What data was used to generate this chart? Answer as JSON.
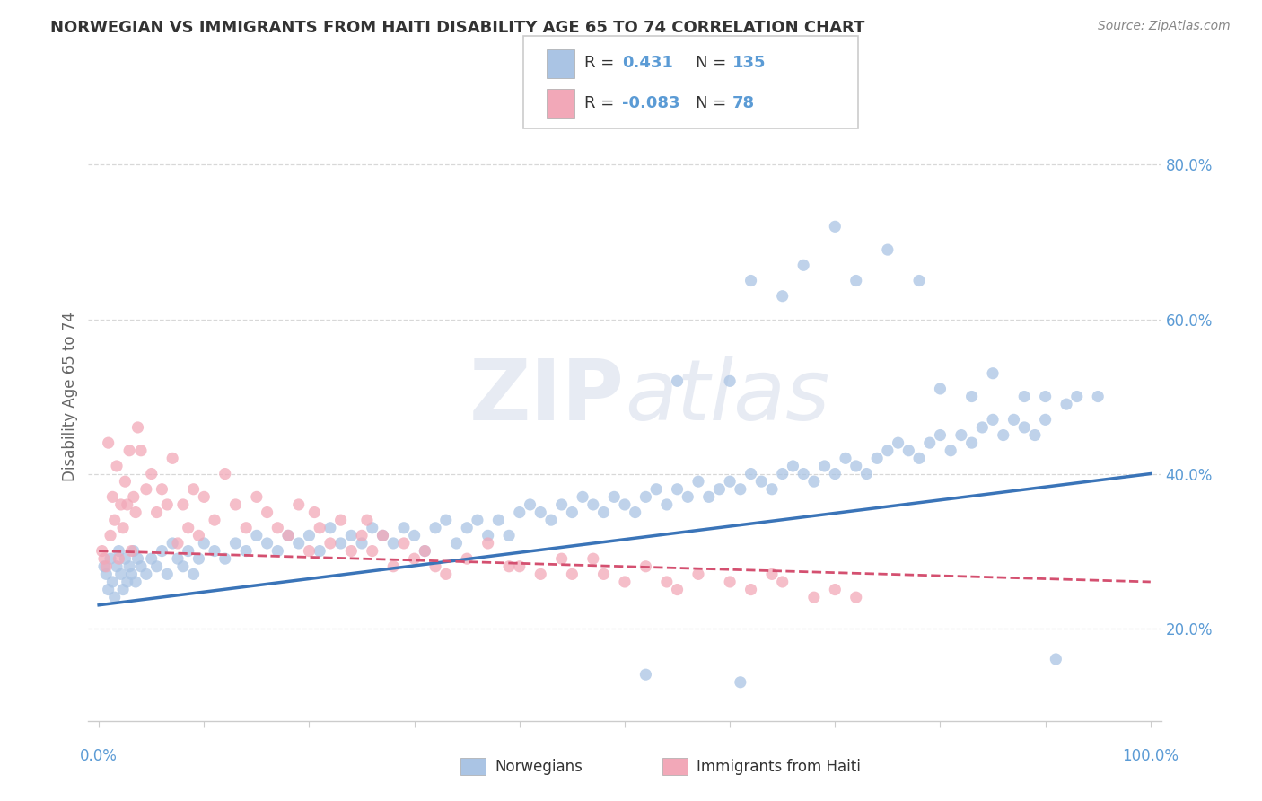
{
  "title": "NORWEGIAN VS IMMIGRANTS FROM HAITI DISABILITY AGE 65 TO 74 CORRELATION CHART",
  "source": "Source: ZipAtlas.com",
  "ylabel": "Disability Age 65 to 74",
  "xlim": [
    -1,
    101
  ],
  "ylim": [
    8,
    92
  ],
  "yticks": [
    20,
    40,
    60,
    80
  ],
  "ytick_labels": [
    "20.0%",
    "40.0%",
    "60.0%",
    "80.0%"
  ],
  "blue_R": "0.431",
  "blue_N": "135",
  "pink_R": "-0.083",
  "pink_N": "78",
  "blue_color": "#aac4e4",
  "pink_color": "#f2a8b8",
  "blue_line_color": "#3a74b8",
  "pink_line_color": "#d45070",
  "blue_scatter": [
    [
      0.5,
      28
    ],
    [
      0.7,
      27
    ],
    [
      0.9,
      25
    ],
    [
      1.1,
      29
    ],
    [
      1.3,
      26
    ],
    [
      1.5,
      24
    ],
    [
      1.7,
      28
    ],
    [
      1.9,
      30
    ],
    [
      2.1,
      27
    ],
    [
      2.3,
      25
    ],
    [
      2.5,
      29
    ],
    [
      2.7,
      26
    ],
    [
      2.9,
      28
    ],
    [
      3.1,
      27
    ],
    [
      3.3,
      30
    ],
    [
      3.5,
      26
    ],
    [
      3.7,
      29
    ],
    [
      4.0,
      28
    ],
    [
      4.5,
      27
    ],
    [
      5.0,
      29
    ],
    [
      5.5,
      28
    ],
    [
      6.0,
      30
    ],
    [
      6.5,
      27
    ],
    [
      7.0,
      31
    ],
    [
      7.5,
      29
    ],
    [
      8.0,
      28
    ],
    [
      8.5,
      30
    ],
    [
      9.0,
      27
    ],
    [
      9.5,
      29
    ],
    [
      10.0,
      31
    ],
    [
      11.0,
      30
    ],
    [
      12.0,
      29
    ],
    [
      13.0,
      31
    ],
    [
      14.0,
      30
    ],
    [
      15.0,
      32
    ],
    [
      16.0,
      31
    ],
    [
      17.0,
      30
    ],
    [
      18.0,
      32
    ],
    [
      19.0,
      31
    ],
    [
      20.0,
      32
    ],
    [
      21.0,
      30
    ],
    [
      22.0,
      33
    ],
    [
      23.0,
      31
    ],
    [
      24.0,
      32
    ],
    [
      25.0,
      31
    ],
    [
      26.0,
      33
    ],
    [
      27.0,
      32
    ],
    [
      28.0,
      31
    ],
    [
      29.0,
      33
    ],
    [
      30.0,
      32
    ],
    [
      31.0,
      30
    ],
    [
      32.0,
      33
    ],
    [
      33.0,
      34
    ],
    [
      34.0,
      31
    ],
    [
      35.0,
      33
    ],
    [
      36.0,
      34
    ],
    [
      37.0,
      32
    ],
    [
      38.0,
      34
    ],
    [
      39.0,
      32
    ],
    [
      40.0,
      35
    ],
    [
      41.0,
      36
    ],
    [
      42.0,
      35
    ],
    [
      43.0,
      34
    ],
    [
      44.0,
      36
    ],
    [
      45.0,
      35
    ],
    [
      46.0,
      37
    ],
    [
      47.0,
      36
    ],
    [
      48.0,
      35
    ],
    [
      49.0,
      37
    ],
    [
      50.0,
      36
    ],
    [
      51.0,
      35
    ],
    [
      52.0,
      37
    ],
    [
      53.0,
      38
    ],
    [
      54.0,
      36
    ],
    [
      55.0,
      38
    ],
    [
      56.0,
      37
    ],
    [
      57.0,
      39
    ],
    [
      58.0,
      37
    ],
    [
      59.0,
      38
    ],
    [
      60.0,
      39
    ],
    [
      61.0,
      38
    ],
    [
      62.0,
      40
    ],
    [
      63.0,
      39
    ],
    [
      64.0,
      38
    ],
    [
      65.0,
      40
    ],
    [
      66.0,
      41
    ],
    [
      67.0,
      40
    ],
    [
      68.0,
      39
    ],
    [
      69.0,
      41
    ],
    [
      70.0,
      40
    ],
    [
      71.0,
      42
    ],
    [
      72.0,
      41
    ],
    [
      73.0,
      40
    ],
    [
      74.0,
      42
    ],
    [
      75.0,
      43
    ],
    [
      76.0,
      44
    ],
    [
      77.0,
      43
    ],
    [
      78.0,
      42
    ],
    [
      79.0,
      44
    ],
    [
      80.0,
      45
    ],
    [
      81.0,
      43
    ],
    [
      82.0,
      45
    ],
    [
      83.0,
      44
    ],
    [
      84.0,
      46
    ],
    [
      85.0,
      47
    ],
    [
      86.0,
      45
    ],
    [
      87.0,
      47
    ],
    [
      88.0,
      46
    ],
    [
      89.0,
      45
    ],
    [
      90.0,
      47
    ],
    [
      91.0,
      16
    ],
    [
      61.0,
      13
    ],
    [
      52.0,
      14
    ],
    [
      55.0,
      52
    ],
    [
      60.0,
      52
    ],
    [
      62.0,
      65
    ],
    [
      65.0,
      63
    ],
    [
      67.0,
      67
    ],
    [
      70.0,
      72
    ],
    [
      72.0,
      65
    ],
    [
      75.0,
      69
    ],
    [
      78.0,
      65
    ],
    [
      80.0,
      51
    ],
    [
      83.0,
      50
    ],
    [
      85.0,
      53
    ],
    [
      88.0,
      50
    ],
    [
      90.0,
      50
    ],
    [
      92.0,
      49
    ],
    [
      93.0,
      50
    ],
    [
      95.0,
      50
    ]
  ],
  "pink_scatter": [
    [
      0.3,
      30
    ],
    [
      0.5,
      29
    ],
    [
      0.7,
      28
    ],
    [
      0.9,
      44
    ],
    [
      1.1,
      32
    ],
    [
      1.3,
      37
    ],
    [
      1.5,
      34
    ],
    [
      1.7,
      41
    ],
    [
      1.9,
      29
    ],
    [
      2.1,
      36
    ],
    [
      2.3,
      33
    ],
    [
      2.5,
      39
    ],
    [
      2.7,
      36
    ],
    [
      2.9,
      43
    ],
    [
      3.1,
      30
    ],
    [
      3.3,
      37
    ],
    [
      3.5,
      35
    ],
    [
      3.7,
      46
    ],
    [
      4.0,
      43
    ],
    [
      4.5,
      38
    ],
    [
      5.0,
      40
    ],
    [
      5.5,
      35
    ],
    [
      6.0,
      38
    ],
    [
      6.5,
      36
    ],
    [
      7.0,
      42
    ],
    [
      7.5,
      31
    ],
    [
      8.0,
      36
    ],
    [
      8.5,
      33
    ],
    [
      9.0,
      38
    ],
    [
      9.5,
      32
    ],
    [
      10.0,
      37
    ],
    [
      11.0,
      34
    ],
    [
      12.0,
      40
    ],
    [
      13.0,
      36
    ],
    [
      14.0,
      33
    ],
    [
      15.0,
      37
    ],
    [
      16.0,
      35
    ],
    [
      17.0,
      33
    ],
    [
      18.0,
      32
    ],
    [
      19.0,
      36
    ],
    [
      20.0,
      30
    ],
    [
      20.5,
      35
    ],
    [
      21.0,
      33
    ],
    [
      22.0,
      31
    ],
    [
      23.0,
      34
    ],
    [
      24.0,
      30
    ],
    [
      25.0,
      32
    ],
    [
      25.5,
      34
    ],
    [
      26.0,
      30
    ],
    [
      27.0,
      32
    ],
    [
      28.0,
      28
    ],
    [
      29.0,
      31
    ],
    [
      30.0,
      29
    ],
    [
      31.0,
      30
    ],
    [
      32.0,
      28
    ],
    [
      33.0,
      27
    ],
    [
      35.0,
      29
    ],
    [
      37.0,
      31
    ],
    [
      39.0,
      28
    ],
    [
      40.0,
      28
    ],
    [
      42.0,
      27
    ],
    [
      44.0,
      29
    ],
    [
      45.0,
      27
    ],
    [
      47.0,
      29
    ],
    [
      48.0,
      27
    ],
    [
      50.0,
      26
    ],
    [
      52.0,
      28
    ],
    [
      54.0,
      26
    ],
    [
      55.0,
      25
    ],
    [
      57.0,
      27
    ],
    [
      60.0,
      26
    ],
    [
      62.0,
      25
    ],
    [
      64.0,
      27
    ],
    [
      65.0,
      26
    ],
    [
      68.0,
      24
    ],
    [
      70.0,
      25
    ],
    [
      72.0,
      24
    ]
  ],
  "blue_line_x": [
    0,
    100
  ],
  "blue_line_y": [
    23,
    40
  ],
  "pink_line_x": [
    0,
    100
  ],
  "pink_line_y": [
    30,
    26
  ],
  "watermark_zip": "ZIP",
  "watermark_atlas": "atlas",
  "background_color": "#ffffff",
  "grid_color": "#d8d8d8",
  "spine_color": "#cccccc",
  "axis_label_color": "#5b9bd5",
  "ylabel_color": "#666666",
  "title_color": "#333333",
  "legend_value_color": "#5b9bd5",
  "legend_label_color": "#333333",
  "bottom_legend_color": "#333333"
}
